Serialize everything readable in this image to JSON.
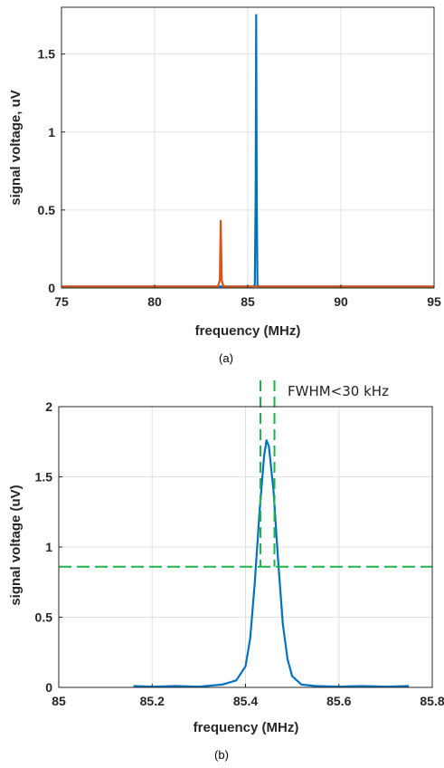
{
  "chart_data": [
    {
      "type": "line",
      "caption": "(a)",
      "xlabel": "frequency (MHz)",
      "ylabel": "signal voltage, uV",
      "xlim": [
        75,
        95
      ],
      "ylim": [
        0,
        1.8
      ],
      "xticks": [
        "75",
        "80",
        "85",
        "90",
        "95"
      ],
      "yticks": [
        "0",
        "0.5",
        "1",
        "1.5"
      ],
      "grid": true,
      "series": [
        {
          "color": "#0072bd",
          "x": [
            75,
            85.3,
            85.38,
            85.42,
            85.45,
            85.48,
            85.52,
            85.6,
            95
          ],
          "y": [
            0.01,
            0.01,
            0.02,
            0.6,
            1.75,
            0.6,
            0.02,
            0.01,
            0.01
          ]
        },
        {
          "color": "#d95319",
          "x": [
            75,
            83.4,
            83.5,
            83.55,
            83.6,
            83.7,
            95
          ],
          "y": [
            0.01,
            0.01,
            0.05,
            0.43,
            0.05,
            0.01,
            0.01
          ]
        }
      ]
    },
    {
      "type": "line",
      "caption": "(b)",
      "xlabel": "frequency (MHz)",
      "ylabel": "signal voltage (uV)",
      "xlim": [
        85,
        85.8
      ],
      "ylim": [
        0,
        2
      ],
      "xticks": [
        "85",
        "85.2",
        "85.4",
        "85.6",
        "85.8"
      ],
      "yticks": [
        "0",
        "0.5",
        "1",
        "1.5",
        "2"
      ],
      "grid": true,
      "annotation": "FWHM<30 kHz",
      "half_max_level": 0.86,
      "fwhm_bounds": [
        85.432,
        85.462
      ],
      "series": [
        {
          "color": "#0072bd",
          "x": [
            85.16,
            85.2,
            85.25,
            85.3,
            85.35,
            85.38,
            85.4,
            85.41,
            85.42,
            85.43,
            85.44,
            85.445,
            85.45,
            85.46,
            85.47,
            85.48,
            85.49,
            85.5,
            85.52,
            85.55,
            85.6,
            85.65,
            85.7,
            85.75
          ],
          "y": [
            0.01,
            0.005,
            0.01,
            0.005,
            0.02,
            0.05,
            0.15,
            0.35,
            0.75,
            1.25,
            1.65,
            1.76,
            1.72,
            1.4,
            0.9,
            0.45,
            0.2,
            0.08,
            0.02,
            0.01,
            0.005,
            0.01,
            0.005,
            0.01
          ]
        }
      ]
    }
  ]
}
